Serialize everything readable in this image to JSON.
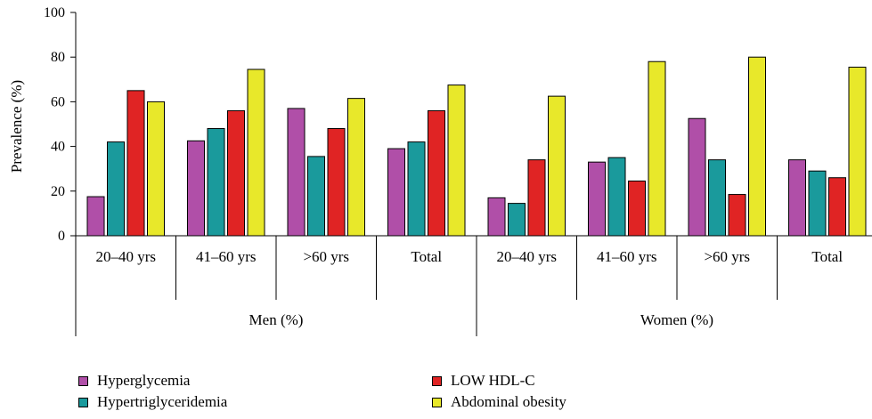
{
  "chart_data": {
    "type": "bar",
    "ylabel": "Prevalence (%)",
    "ylim": [
      0,
      100
    ],
    "yticks": [
      0,
      20,
      40,
      60,
      80,
      100
    ],
    "groups": [
      {
        "label": "Men (%)",
        "categories": [
          "20–40 yrs",
          "41–60 yrs",
          ">60 yrs",
          "Total"
        ]
      },
      {
        "label": "Women (%)",
        "categories": [
          "20–40 yrs",
          "41–60 yrs",
          ">60 yrs",
          "Total"
        ]
      }
    ],
    "series": [
      {
        "name": "Hyperglycemia",
        "color": "#b04fa8",
        "values": [
          17.5,
          42.5,
          57,
          39,
          17,
          33,
          52.5,
          34
        ]
      },
      {
        "name": "Hypertriglyceridemia",
        "color": "#1a9a9c",
        "values": [
          42,
          48,
          35.5,
          42,
          14.5,
          35,
          34,
          29
        ]
      },
      {
        "name": "LOW HDL-C",
        "color": "#e02424",
        "values": [
          65,
          56,
          48,
          56,
          34,
          24.5,
          18.5,
          26
        ]
      },
      {
        "name": "Abdominal obesity",
        "color": "#e8e82a",
        "values": [
          60,
          74.5,
          61.5,
          67.5,
          62.5,
          78,
          80,
          75.5
        ]
      }
    ],
    "grid": false,
    "legend_position": "bottom"
  }
}
